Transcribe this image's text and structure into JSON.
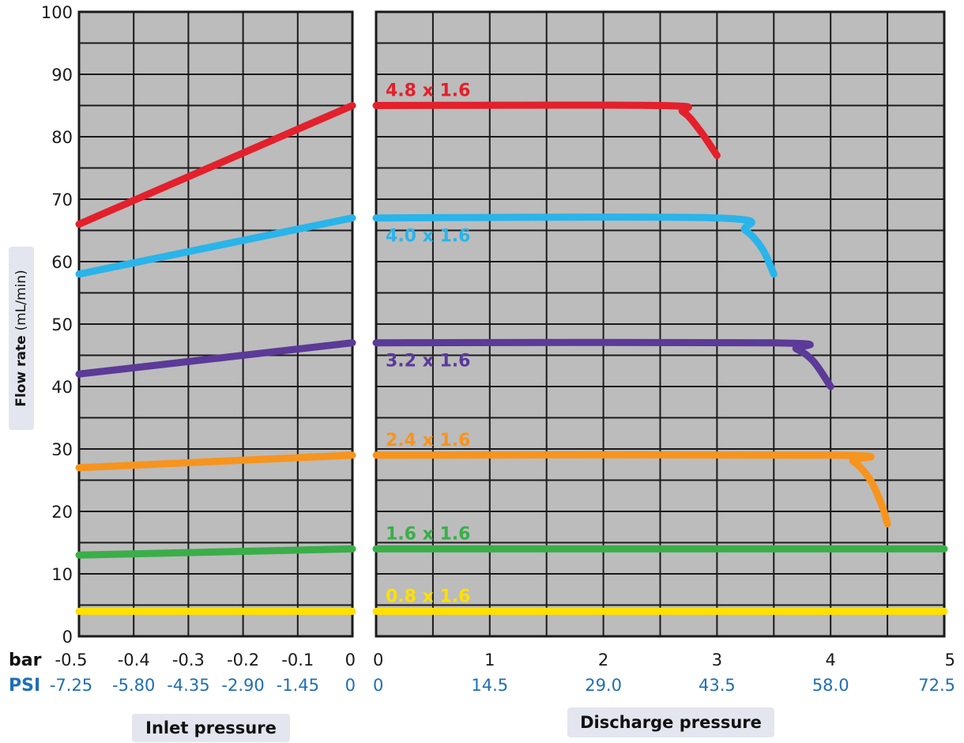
{
  "chart_data": {
    "type": "line",
    "ylabel": "Flow rate",
    "ylabel_unit": "(mL/min)",
    "ylim": [
      0,
      100
    ],
    "y_ticks": [
      0,
      10,
      20,
      30,
      40,
      50,
      60,
      70,
      80,
      90,
      100
    ],
    "grid": true,
    "background": "#bcbcbc",
    "row_labels": {
      "bar": "bar",
      "psi": "PSI"
    },
    "panels": [
      {
        "xlabel": "Inlet pressure",
        "xlim_bar": [
          -0.5,
          0
        ],
        "x_ticks_bar": [
          "-0.5",
          "-0.4",
          "-0.3",
          "-0.2",
          "-0.1",
          "0"
        ],
        "x_ticks_psi": [
          "-7.25",
          "-5.80",
          "-4.35",
          "-2.90",
          "-1.45",
          "0"
        ]
      },
      {
        "xlabel": "Discharge pressure",
        "xlim_bar": [
          0,
          5
        ],
        "x_ticks_bar": [
          "0",
          "1",
          "2",
          "3",
          "4",
          "5"
        ],
        "x_ticks_psi": [
          "0",
          "14.5",
          "29.0",
          "43.5",
          "58.0",
          "72.5"
        ]
      }
    ],
    "series": [
      {
        "name": "4.8 x 1.6",
        "color": "#e3202c",
        "inlet": [
          [
            -0.5,
            66
          ],
          [
            0,
            85
          ]
        ],
        "discharge": [
          [
            0,
            85
          ],
          [
            2.5,
            85
          ],
          [
            2.7,
            84
          ],
          [
            2.85,
            81
          ],
          [
            3.0,
            77
          ]
        ]
      },
      {
        "name": "4.0 x 1.6",
        "color": "#29b4ea",
        "inlet": [
          [
            -0.5,
            58
          ],
          [
            0,
            67
          ]
        ],
        "discharge": [
          [
            0,
            67
          ],
          [
            3.0,
            67
          ],
          [
            3.25,
            65
          ],
          [
            3.4,
            62
          ],
          [
            3.5,
            58
          ]
        ]
      },
      {
        "name": "3.2 x 1.6",
        "color": "#5b3a98",
        "inlet": [
          [
            -0.5,
            42
          ],
          [
            0,
            47
          ]
        ],
        "discharge": [
          [
            0,
            47
          ],
          [
            3.5,
            47
          ],
          [
            3.7,
            46
          ],
          [
            3.85,
            44
          ],
          [
            4.0,
            40
          ]
        ]
      },
      {
        "name": "2.4 x 1.6",
        "color": "#f7941d",
        "inlet": [
          [
            -0.5,
            27
          ],
          [
            0,
            29
          ]
        ],
        "discharge": [
          [
            0,
            29
          ],
          [
            4.0,
            29
          ],
          [
            4.2,
            28
          ],
          [
            4.35,
            25
          ],
          [
            4.45,
            21
          ],
          [
            4.5,
            18
          ]
        ]
      },
      {
        "name": "1.6 x 1.6",
        "color": "#3aae49",
        "inlet": [
          [
            -0.5,
            13
          ],
          [
            0,
            14
          ]
        ],
        "discharge": [
          [
            0,
            14
          ],
          [
            5,
            14
          ]
        ]
      },
      {
        "name": "0.8 x 1.6",
        "color": "#ffe000",
        "inlet": [
          [
            -0.5,
            4
          ],
          [
            0,
            4
          ]
        ],
        "discharge": [
          [
            0,
            4
          ],
          [
            5,
            4
          ]
        ]
      }
    ]
  }
}
